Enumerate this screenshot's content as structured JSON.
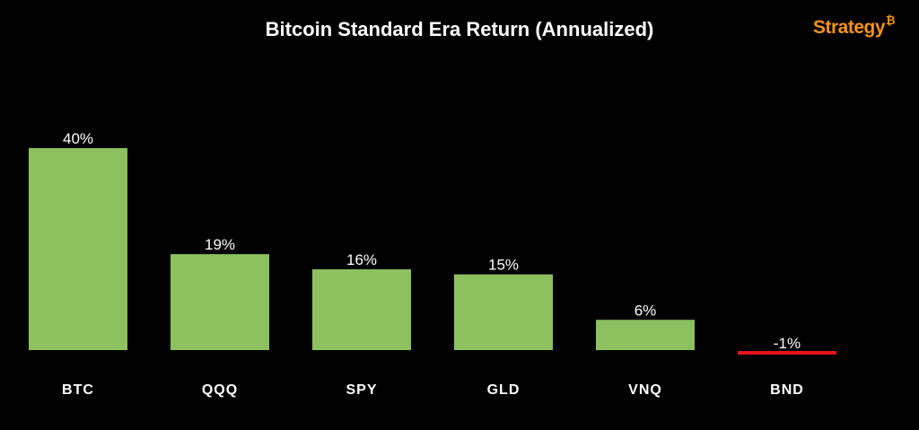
{
  "brand": {
    "name": "Strategy",
    "symbol": "₿",
    "color": "#f7931a"
  },
  "chart_data": {
    "type": "bar",
    "title": "Bitcoin Standard Era Return (Annualized)",
    "xlabel": "",
    "ylabel": "",
    "categories": [
      "BTC",
      "QQQ",
      "SPY",
      "GLD",
      "VNQ",
      "BND"
    ],
    "values": [
      40,
      19,
      16,
      15,
      6,
      -1
    ],
    "data_labels": [
      "40%",
      "19%",
      "16%",
      "15%",
      "6%",
      "-1%"
    ],
    "unit": "%",
    "ylim": [
      -1,
      40
    ],
    "grid": false,
    "legend": "none",
    "colors": {
      "positive": "#8dc05f",
      "negative": "#e8141b",
      "background": "#000000",
      "text": "#ffffff"
    }
  }
}
